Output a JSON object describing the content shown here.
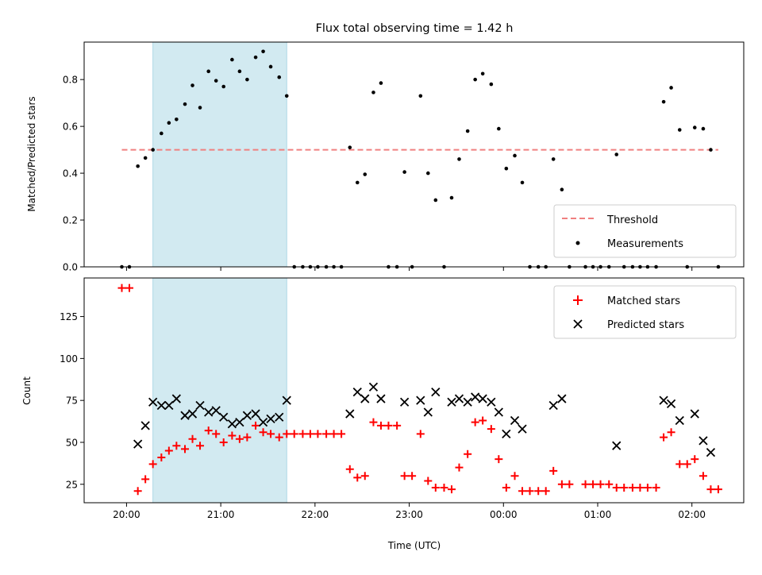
{
  "chart_data": {
    "title": "Flux total observing time = 1.42 h",
    "xlabel": "Time (UTC)",
    "x_unit": "hours UTC (values past 24 are after midnight)",
    "xlim": [
      19.55,
      26.55
    ],
    "x_ticks": [
      20,
      21,
      22,
      23,
      24,
      25,
      26
    ],
    "x_ticklabels": [
      "20:00",
      "21:00",
      "22:00",
      "23:00",
      "00:00",
      "01:00",
      "02:00"
    ],
    "shaded_region": [
      20.28,
      21.7
    ],
    "panels": [
      {
        "type": "scatter",
        "ylabel": "Matched/Predicted stars",
        "ylim": [
          0,
          0.96
        ],
        "y_ticks": [
          0,
          0.2,
          0.4,
          0.6,
          0.8
        ],
        "y_ticklabels": [
          "0.0",
          "0.2",
          "0.4",
          "0.6",
          "0.8"
        ],
        "legend": [
          "Threshold",
          "Measurements"
        ],
        "legend_position": "lower right",
        "threshold": {
          "name": "Threshold",
          "y": 0.5,
          "x_range": [
            19.95,
            26.28
          ],
          "color": "#f08080"
        },
        "series": [
          {
            "name": "Measurements",
            "color": "#000000",
            "points": [
              [
                19.95,
                0
              ],
              [
                20.03,
                0
              ],
              [
                20.12,
                0.43
              ],
              [
                20.2,
                0.465
              ],
              [
                20.28,
                0.5
              ],
              [
                20.37,
                0.57
              ],
              [
                20.45,
                0.615
              ],
              [
                20.53,
                0.63
              ],
              [
                20.62,
                0.695
              ],
              [
                20.7,
                0.775
              ],
              [
                20.78,
                0.68
              ],
              [
                20.87,
                0.835
              ],
              [
                20.95,
                0.795
              ],
              [
                21.03,
                0.77
              ],
              [
                21.12,
                0.885
              ],
              [
                21.2,
                0.835
              ],
              [
                21.28,
                0.8
              ],
              [
                21.37,
                0.895
              ],
              [
                21.45,
                0.92
              ],
              [
                21.53,
                0.855
              ],
              [
                21.62,
                0.81
              ],
              [
                21.7,
                0.73
              ],
              [
                21.78,
                0
              ],
              [
                21.87,
                0
              ],
              [
                21.95,
                0
              ],
              [
                22.03,
                0
              ],
              [
                22.12,
                0
              ],
              [
                22.2,
                0
              ],
              [
                22.28,
                0
              ],
              [
                22.37,
                0.51
              ],
              [
                22.45,
                0.36
              ],
              [
                22.53,
                0.395
              ],
              [
                22.62,
                0.745
              ],
              [
                22.7,
                0.785
              ],
              [
                22.78,
                0
              ],
              [
                22.87,
                0
              ],
              [
                22.95,
                0.405
              ],
              [
                23.03,
                0
              ],
              [
                23.12,
                0.73
              ],
              [
                23.2,
                0.4
              ],
              [
                23.28,
                0.285
              ],
              [
                23.37,
                0
              ],
              [
                23.45,
                0.295
              ],
              [
                23.53,
                0.46
              ],
              [
                23.62,
                0.58
              ],
              [
                23.7,
                0.8
              ],
              [
                23.78,
                0.825
              ],
              [
                23.87,
                0.78
              ],
              [
                23.95,
                0.59
              ],
              [
                24.03,
                0.42
              ],
              [
                24.12,
                0.475
              ],
              [
                24.2,
                0.36
              ],
              [
                24.28,
                0
              ],
              [
                24.37,
                0
              ],
              [
                24.45,
                0
              ],
              [
                24.53,
                0.46
              ],
              [
                24.62,
                0.33
              ],
              [
                24.7,
                0
              ],
              [
                24.87,
                0
              ],
              [
                24.95,
                0
              ],
              [
                25.03,
                0
              ],
              [
                25.12,
                0
              ],
              [
                25.2,
                0.48
              ],
              [
                25.28,
                0
              ],
              [
                25.37,
                0
              ],
              [
                25.45,
                0
              ],
              [
                25.53,
                0
              ],
              [
                25.62,
                0
              ],
              [
                25.7,
                0.705
              ],
              [
                25.78,
                0.765
              ],
              [
                25.87,
                0.585
              ],
              [
                25.95,
                0
              ],
              [
                26.03,
                0.595
              ],
              [
                26.12,
                0.59
              ],
              [
                26.2,
                0.5
              ],
              [
                26.28,
                0
              ]
            ]
          }
        ]
      },
      {
        "type": "scatter",
        "ylabel": "Count",
        "ylim": [
          14,
          148
        ],
        "y_ticks": [
          25,
          50,
          75,
          100,
          125
        ],
        "y_ticklabels": [
          "25",
          "50",
          "75",
          "100",
          "125"
        ],
        "legend": [
          "Matched stars",
          "Predicted stars"
        ],
        "legend_position": "upper right",
        "series": [
          {
            "name": "Matched stars",
            "marker": "+",
            "color": "#ff0000",
            "points": [
              [
                19.95,
                142
              ],
              [
                20.03,
                142
              ],
              [
                20.12,
                21
              ],
              [
                20.2,
                28
              ],
              [
                20.28,
                37
              ],
              [
                20.37,
                41
              ],
              [
                20.45,
                45
              ],
              [
                20.53,
                48
              ],
              [
                20.62,
                46
              ],
              [
                20.7,
                52
              ],
              [
                20.78,
                48
              ],
              [
                20.87,
                57
              ],
              [
                20.95,
                55
              ],
              [
                21.03,
                50
              ],
              [
                21.12,
                54
              ],
              [
                21.2,
                52
              ],
              [
                21.28,
                53
              ],
              [
                21.37,
                60
              ],
              [
                21.45,
                56
              ],
              [
                21.53,
                55
              ],
              [
                21.62,
                53
              ],
              [
                21.7,
                55
              ],
              [
                21.78,
                55
              ],
              [
                21.87,
                55
              ],
              [
                21.95,
                55
              ],
              [
                22.03,
                55
              ],
              [
                22.12,
                55
              ],
              [
                22.2,
                55
              ],
              [
                22.28,
                55
              ],
              [
                22.37,
                34
              ],
              [
                22.45,
                29
              ],
              [
                22.53,
                30
              ],
              [
                22.62,
                62
              ],
              [
                22.7,
                60
              ],
              [
                22.78,
                60
              ],
              [
                22.87,
                60
              ],
              [
                22.95,
                30
              ],
              [
                23.03,
                30
              ],
              [
                23.12,
                55
              ],
              [
                23.2,
                27
              ],
              [
                23.28,
                23
              ],
              [
                23.37,
                23
              ],
              [
                23.45,
                22
              ],
              [
                23.53,
                35
              ],
              [
                23.62,
                43
              ],
              [
                23.7,
                62
              ],
              [
                23.78,
                63
              ],
              [
                23.87,
                58
              ],
              [
                23.95,
                40
              ],
              [
                24.03,
                23
              ],
              [
                24.12,
                30
              ],
              [
                24.2,
                21
              ],
              [
                24.28,
                21
              ],
              [
                24.37,
                21
              ],
              [
                24.45,
                21
              ],
              [
                24.53,
                33
              ],
              [
                24.62,
                25
              ],
              [
                24.7,
                25
              ],
              [
                24.87,
                25
              ],
              [
                24.95,
                25
              ],
              [
                25.03,
                25
              ],
              [
                25.12,
                25
              ],
              [
                25.2,
                23
              ],
              [
                25.28,
                23
              ],
              [
                25.37,
                23
              ],
              [
                25.45,
                23
              ],
              [
                25.53,
                23
              ],
              [
                25.62,
                23
              ],
              [
                25.7,
                53
              ],
              [
                25.78,
                56
              ],
              [
                25.87,
                37
              ],
              [
                25.95,
                37
              ],
              [
                26.03,
                40
              ],
              [
                26.12,
                30
              ],
              [
                26.2,
                22
              ],
              [
                26.28,
                22
              ]
            ]
          },
          {
            "name": "Predicted stars",
            "marker": "x",
            "color": "#000000",
            "points": [
              [
                20.12,
                49
              ],
              [
                20.2,
                60
              ],
              [
                20.28,
                74
              ],
              [
                20.37,
                72
              ],
              [
                20.45,
                72
              ],
              [
                20.53,
                76
              ],
              [
                20.62,
                66
              ],
              [
                20.7,
                67
              ],
              [
                20.78,
                72
              ],
              [
                20.87,
                68
              ],
              [
                20.95,
                69
              ],
              [
                21.03,
                65
              ],
              [
                21.12,
                61
              ],
              [
                21.2,
                62
              ],
              [
                21.28,
                66
              ],
              [
                21.37,
                67
              ],
              [
                21.45,
                62
              ],
              [
                21.53,
                64
              ],
              [
                21.62,
                65
              ],
              [
                21.7,
                75
              ],
              [
                22.37,
                67
              ],
              [
                22.45,
                80
              ],
              [
                22.53,
                76
              ],
              [
                22.62,
                83
              ],
              [
                22.7,
                76
              ],
              [
                22.95,
                74
              ],
              [
                23.12,
                75
              ],
              [
                23.2,
                68
              ],
              [
                23.28,
                80
              ],
              [
                23.45,
                74
              ],
              [
                23.53,
                76
              ],
              [
                23.62,
                74
              ],
              [
                23.7,
                77
              ],
              [
                23.78,
                76
              ],
              [
                23.87,
                74
              ],
              [
                23.95,
                68
              ],
              [
                24.03,
                55
              ],
              [
                24.12,
                63
              ],
              [
                24.2,
                58
              ],
              [
                24.53,
                72
              ],
              [
                24.62,
                76
              ],
              [
                25.2,
                48
              ],
              [
                25.7,
                75
              ],
              [
                25.78,
                73
              ],
              [
                25.87,
                63
              ],
              [
                26.03,
                67
              ],
              [
                26.12,
                51
              ],
              [
                26.2,
                44
              ]
            ]
          }
        ]
      }
    ]
  }
}
